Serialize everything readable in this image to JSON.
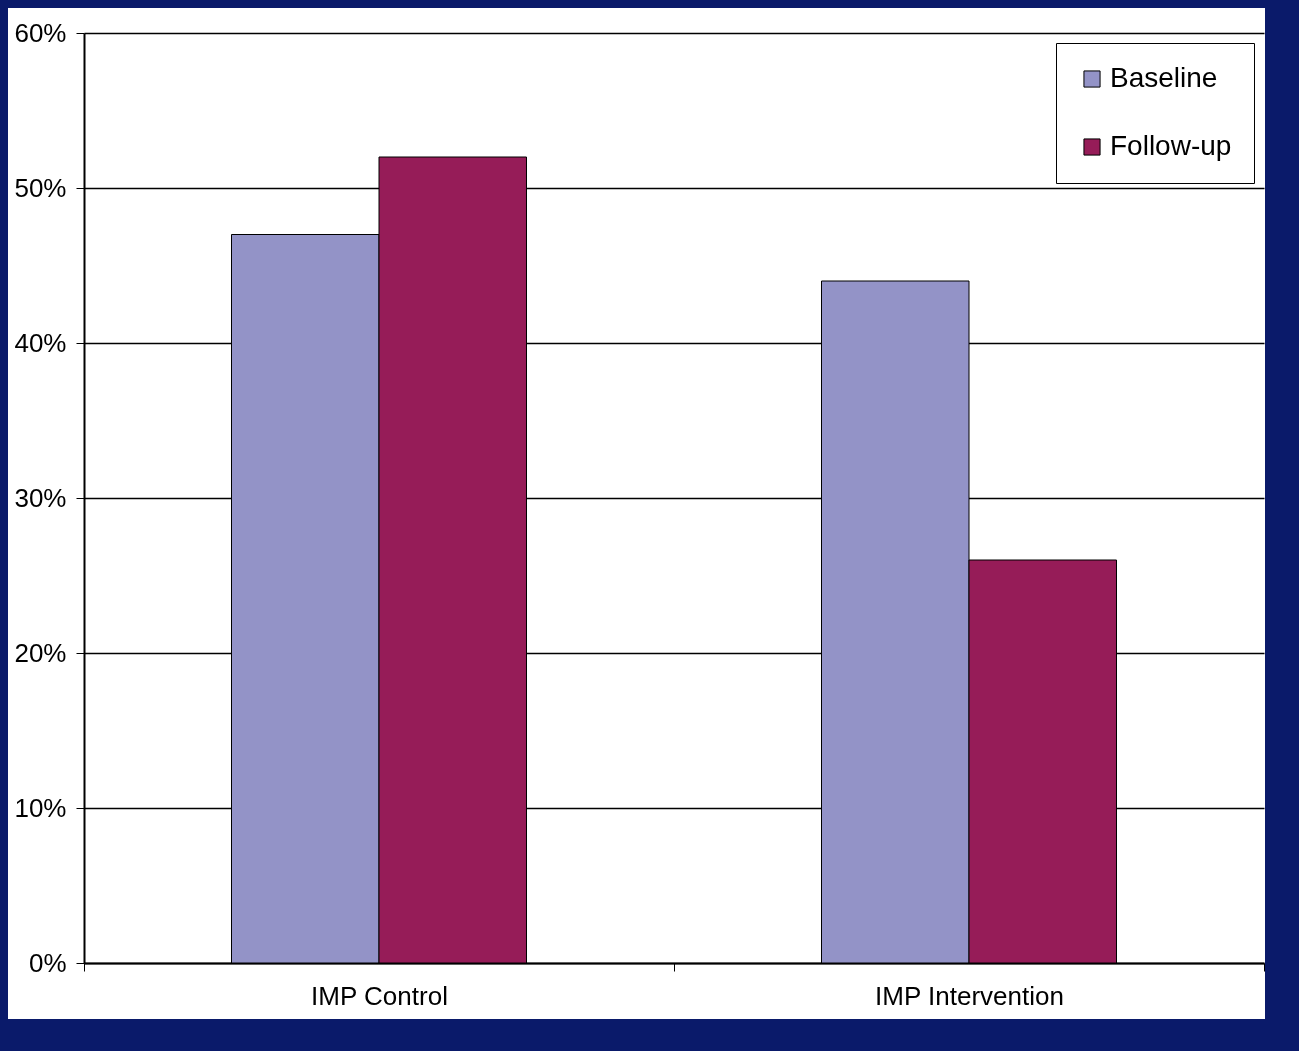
{
  "chart_data": {
    "type": "bar",
    "categories": [
      "IMP Control",
      "IMP Intervention"
    ],
    "series": [
      {
        "name": "Baseline",
        "color": "#9393c7",
        "values": [
          47,
          44
        ]
      },
      {
        "name": "Follow-up",
        "color": "#961c58",
        "values": [
          52,
          26
        ]
      }
    ],
    "ylim": [
      0,
      60
    ],
    "yticks": [
      {
        "value": 0,
        "label": "0%"
      },
      {
        "value": 10,
        "label": "10%"
      },
      {
        "value": 20,
        "label": "20%"
      },
      {
        "value": 30,
        "label": "30%"
      },
      {
        "value": 40,
        "label": "40%"
      },
      {
        "value": 50,
        "label": "50%"
      },
      {
        "value": 60,
        "label": "60%"
      }
    ],
    "grid": "y",
    "legend": "top right"
  }
}
